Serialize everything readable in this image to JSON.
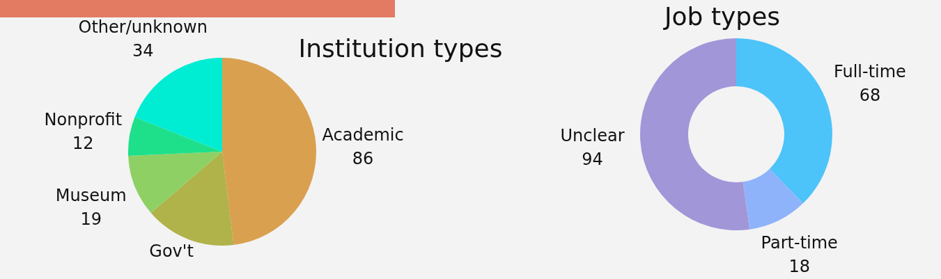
{
  "chart_data": [
    {
      "type": "pie",
      "title": "Institution types",
      "categories": [
        "Academic",
        "Gov't",
        "Museum",
        "Nonprofit",
        "Other/unknown"
      ],
      "values": [
        86,
        28,
        19,
        12,
        34
      ],
      "value_labels": [
        "86",
        null,
        "19",
        "12",
        "34"
      ],
      "colors": [
        "#d9a050",
        "#b0b24a",
        "#8ed064",
        "#1ee08a",
        "#00ecd3"
      ]
    },
    {
      "type": "donut",
      "title": "Job types",
      "categories": [
        "Full-time",
        "Part-time",
        "Unclear"
      ],
      "values": [
        68,
        18,
        94
      ],
      "data_labels": true,
      "colors": [
        "#4cc3f9",
        "#8fb3fb",
        "#a196d8"
      ]
    }
  ]
}
